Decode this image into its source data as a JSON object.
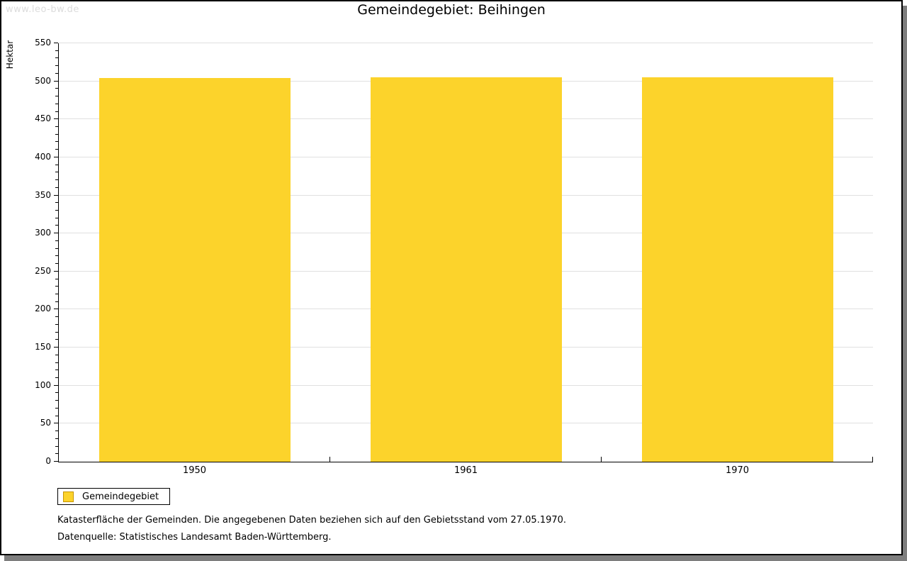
{
  "watermark": "www.leo-bw.de",
  "title": "Gemeindegebiet: Beihingen",
  "y_axis_label": "Hektar",
  "legend_label": "Gemeindegebiet",
  "footnotes": [
    "Katasterfläche der Gemeinden. Die angegebenen Daten beziehen sich auf den Gebietsstand vom 27.05.1970.",
    "Datenquelle: Statistisches Landesamt Baden-Württemberg."
  ],
  "colors": {
    "bar": "#fcd32b",
    "swatch_fill": "#fcd32b",
    "swatch_border": "#c79500",
    "grid": "#e0e0e0",
    "axis": "#000000",
    "watermark": "#dcdcdc",
    "shadow": "#7e7e7e"
  },
  "chart_data": {
    "type": "bar",
    "title": "Gemeindegebiet: Beihingen",
    "categories": [
      "1950",
      "1961",
      "1970"
    ],
    "series": [
      {
        "name": "Gemeindegebiet",
        "values": [
          504,
          505,
          505
        ]
      }
    ],
    "xlabel": "",
    "ylabel": "Hektar",
    "ylim": [
      0,
      550
    ],
    "y_major_step": 50,
    "y_minor_step": 10,
    "grid": "horizontal-major",
    "legend_position": "bottom-left",
    "bar_color": "#fcd32b"
  }
}
